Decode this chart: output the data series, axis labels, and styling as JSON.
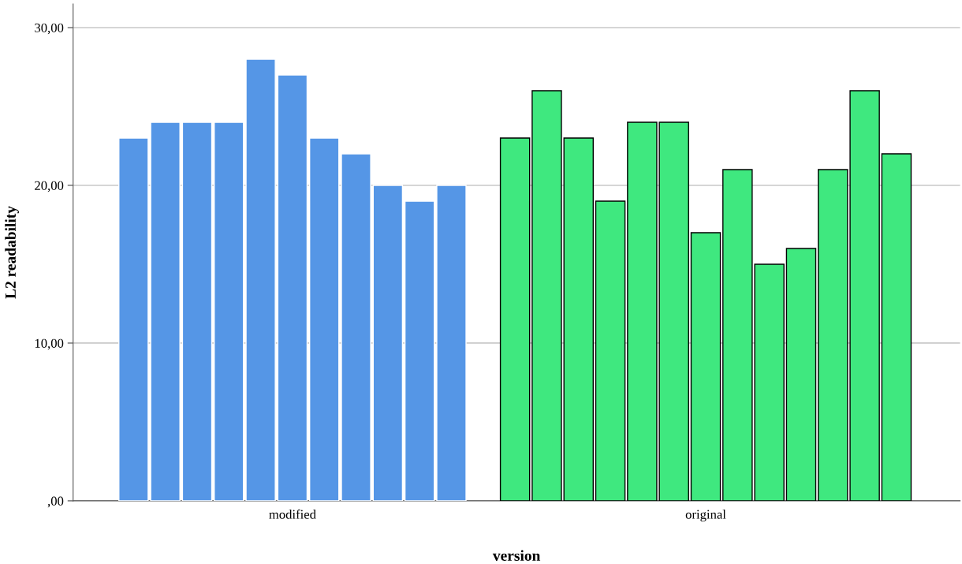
{
  "chart_data": {
    "type": "bar",
    "xlabel": "version",
    "ylabel": "L2 readability",
    "categories": [
      null,
      null,
      null,
      null,
      null,
      "modified",
      null,
      null,
      null,
      null,
      null,
      null,
      null,
      null,
      null,
      null,
      null,
      null,
      "original",
      null,
      null,
      null,
      null,
      null,
      null
    ],
    "series": [
      {
        "color": "#5596e6",
        "values": [
          23,
          24,
          24,
          24,
          28,
          27,
          23,
          22,
          20,
          19,
          20,
          null,
          null,
          null,
          null,
          null,
          null,
          null,
          null,
          null,
          null,
          null,
          null,
          null,
          null
        ]
      },
      {
        "color": "#3fe87f",
        "values": [
          null,
          null,
          null,
          null,
          null,
          null,
          null,
          null,
          null,
          null,
          null,
          null,
          23,
          26,
          23,
          19,
          24,
          24,
          17,
          21,
          15,
          16,
          21,
          26,
          22
        ]
      }
    ],
    "ylim": [
      0,
      31.5
    ],
    "yticks": [
      {
        "value": 0,
        "label": ",00"
      },
      {
        "value": 10,
        "label": "10,00"
      },
      {
        "value": 20,
        "label": "20,00"
      },
      {
        "value": 30,
        "label": "30,00"
      }
    ],
    "grid": "y",
    "legend": false
  }
}
